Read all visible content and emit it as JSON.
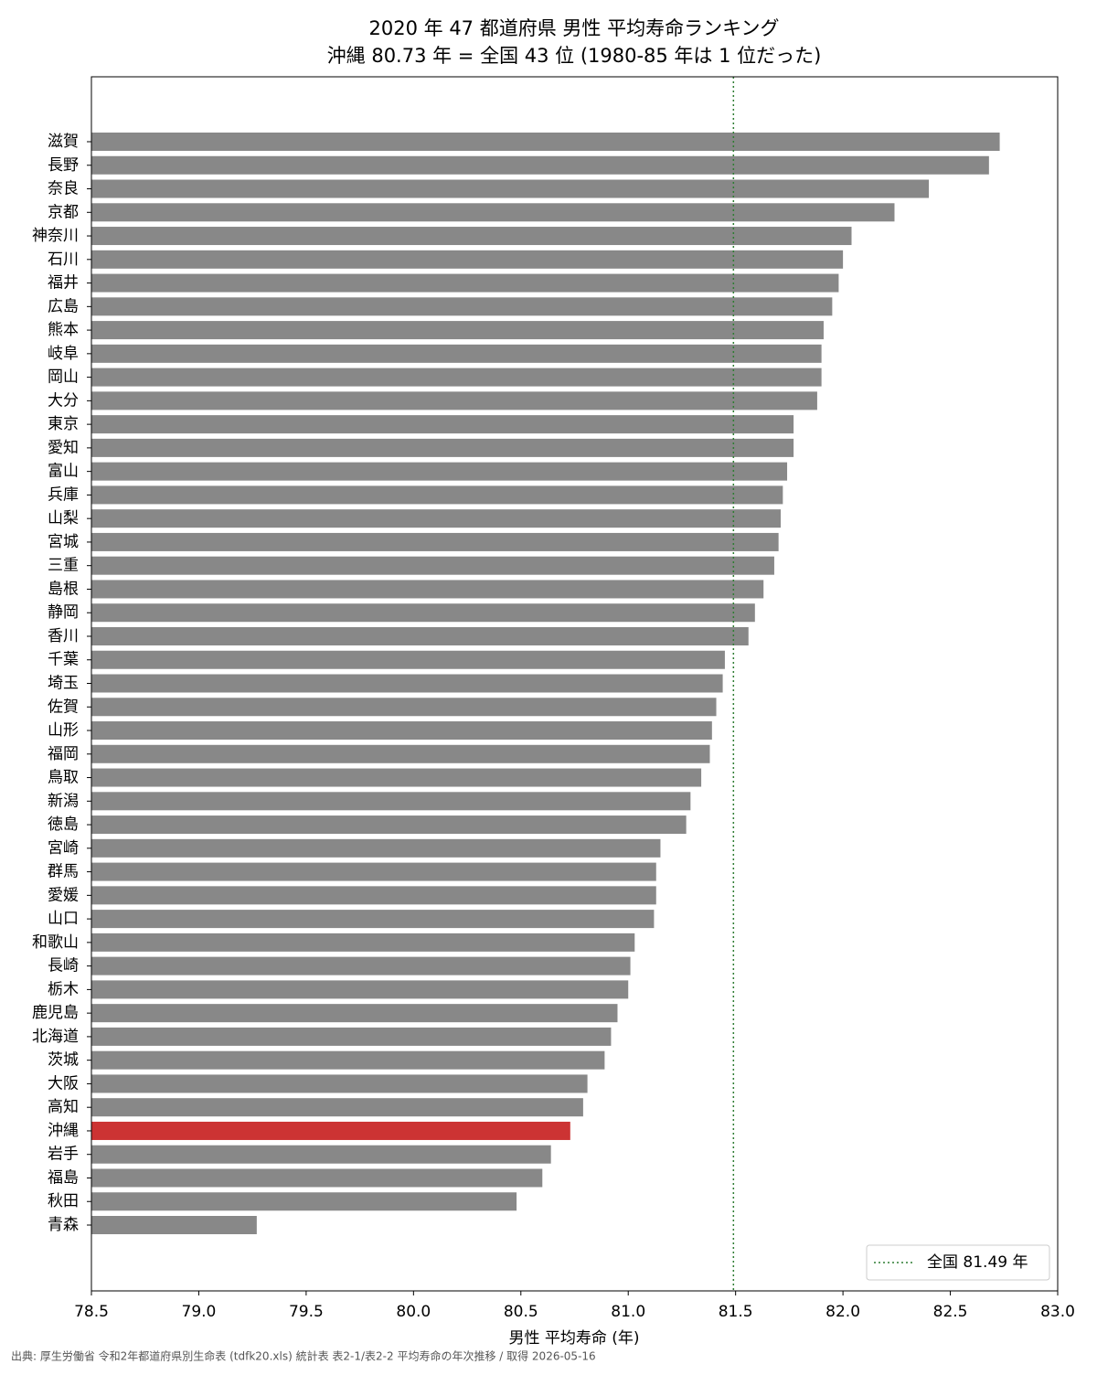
{
  "chart_data": {
    "type": "barh",
    "title": "2020 年 47 都道府県 男性 平均寿命ランキング",
    "subtitle": "沖縄 80.73 年 = 全国 43 位 (1980-85 年は 1 位だった)",
    "xlabel": "男性 平均寿命 (年)",
    "source": "出典: 厚生労働省 令和2年都道府県別生命表 (tdfk20.xls) 統計表 表2-1/表2-2 平均寿命の年次推移 / 取得 2026-05-16",
    "categories": [
      "滋賀",
      "長野",
      "奈良",
      "京都",
      "神奈川",
      "石川",
      "福井",
      "広島",
      "熊本",
      "岐阜",
      "岡山",
      "大分",
      "東京",
      "愛知",
      "富山",
      "兵庫",
      "山梨",
      "宮城",
      "三重",
      "島根",
      "静岡",
      "香川",
      "千葉",
      "埼玉",
      "佐賀",
      "山形",
      "福岡",
      "鳥取",
      "新潟",
      "徳島",
      "宮崎",
      "群馬",
      "愛媛",
      "山口",
      "和歌山",
      "長崎",
      "栃木",
      "鹿児島",
      "北海道",
      "茨城",
      "大阪",
      "高知",
      "沖縄",
      "岩手",
      "福島",
      "秋田",
      "青森"
    ],
    "values": [
      82.73,
      82.68,
      82.4,
      82.24,
      82.04,
      82.0,
      81.98,
      81.95,
      81.91,
      81.9,
      81.9,
      81.88,
      81.77,
      81.77,
      81.74,
      81.72,
      81.71,
      81.7,
      81.68,
      81.63,
      81.59,
      81.56,
      81.45,
      81.44,
      81.41,
      81.39,
      81.38,
      81.34,
      81.29,
      81.27,
      81.15,
      81.13,
      81.13,
      81.12,
      81.03,
      81.01,
      81.0,
      80.95,
      80.92,
      80.89,
      80.81,
      80.79,
      80.73,
      80.64,
      80.6,
      80.48,
      79.27
    ],
    "colors": [
      "#888888",
      "#888888",
      "#888888",
      "#888888",
      "#888888",
      "#888888",
      "#888888",
      "#888888",
      "#888888",
      "#888888",
      "#888888",
      "#888888",
      "#888888",
      "#888888",
      "#888888",
      "#888888",
      "#888888",
      "#888888",
      "#888888",
      "#888888",
      "#888888",
      "#888888",
      "#888888",
      "#888888",
      "#888888",
      "#888888",
      "#888888",
      "#888888",
      "#888888",
      "#888888",
      "#888888",
      "#888888",
      "#888888",
      "#888888",
      "#888888",
      "#888888",
      "#888888",
      "#888888",
      "#888888",
      "#888888",
      "#888888",
      "#888888",
      "#cc3333",
      "#888888",
      "#888888",
      "#888888",
      "#888888"
    ],
    "reference": {
      "value": 81.49,
      "label": "全国 81.49 年",
      "color": "#2e7d32"
    },
    "xlim": [
      78.5,
      83.0
    ],
    "xticks": [
      78.5,
      {
        "value": 79.0,
        "label": "79.0"
      },
      79.5,
      {
        "value": 80.0,
        "label": "80.0"
      },
      80.5,
      {
        "value": 81.0,
        "label": "81.0"
      },
      81.5,
      {
        "value": 82.0,
        "label": "82.0"
      },
      82.5,
      {
        "value": 83.0,
        "label": "83.0"
      }
    ],
    "legend": "lower right"
  }
}
